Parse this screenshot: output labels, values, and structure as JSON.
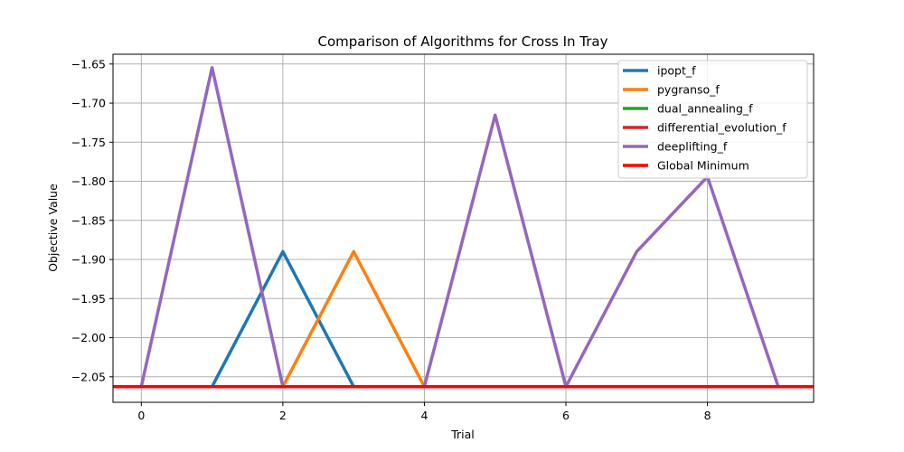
{
  "chart_data": {
    "type": "line",
    "title": "Comparison of Algorithms for Cross In Tray",
    "xlabel": "Trial",
    "ylabel": "Objective Value",
    "xlim": [
      -0.4,
      9.5
    ],
    "ylim": [
      -2.0826,
      -1.6375
    ],
    "x_ticks": [
      0,
      2,
      4,
      6,
      8
    ],
    "y_ticks": [
      -1.65,
      -1.7,
      -1.75,
      -1.8,
      -1.85,
      -1.9,
      -1.95,
      -2.0,
      -2.05
    ],
    "x_tick_labels": [
      "0",
      "2",
      "4",
      "6",
      "8"
    ],
    "y_tick_labels": [
      "−1.65",
      "−1.70",
      "−1.75",
      "−1.80",
      "−1.85",
      "−1.90",
      "−1.95",
      "−2.00",
      "−2.05"
    ],
    "grid": true,
    "legend_position": "top-right",
    "x": [
      0,
      1,
      2,
      3,
      4,
      5,
      6,
      7,
      8,
      9
    ],
    "series": [
      {
        "name": "ipopt_f",
        "color": "#1f77b4",
        "values": [
          -2.06262,
          -2.06262,
          -1.8899,
          -2.06262,
          -2.06262,
          -2.06262,
          -2.06262,
          -2.06262,
          -2.06262,
          -2.06262
        ]
      },
      {
        "name": "pygranso_f",
        "color": "#ff7f0e",
        "values": [
          -2.06262,
          -2.06262,
          -2.06262,
          -1.8899,
          -2.06262,
          -2.06262,
          -2.06262,
          -2.06262,
          -2.06262,
          -2.06262
        ]
      },
      {
        "name": "dual_annealing_f",
        "color": "#2ca02c",
        "values": [
          -2.06262,
          -2.06262,
          -2.06262,
          -2.06262,
          -2.06262,
          -2.06262,
          -2.06262,
          -2.06262,
          -2.06262,
          -2.06262
        ]
      },
      {
        "name": "differential_evolution_f",
        "color": "#d62728",
        "values": [
          -2.06262,
          -2.06262,
          -2.06262,
          -2.06262,
          -2.06262,
          -2.06262,
          -2.06262,
          -2.06262,
          -2.06262,
          -2.06262
        ]
      },
      {
        "name": "deeplifting_f",
        "color": "#9467bd",
        "values": [
          -2.06262,
          -1.6546,
          -2.06262,
          -2.06262,
          -2.06262,
          -1.7153,
          -2.06262,
          -1.8899,
          -1.7942,
          -2.06262
        ]
      }
    ],
    "reference_line": {
      "name": "Global Minimum",
      "color": "#ff0000",
      "value": -2.06262
    }
  }
}
